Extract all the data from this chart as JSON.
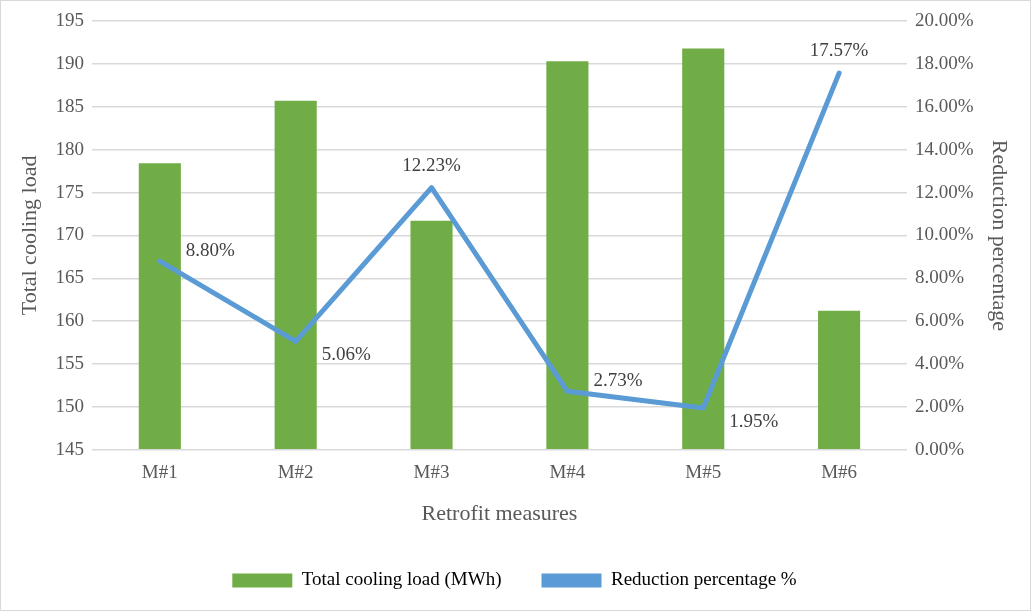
{
  "chart_data": {
    "type": "bar",
    "xlabel": "Retrofit measures",
    "ylabel": "Total cooling load",
    "y2label": "Reduction percentage",
    "categories": [
      "M#1",
      "M#2",
      "M#3",
      "M#4",
      "M#5",
      "M#6"
    ],
    "series": [
      {
        "name": "Total cooling load (MWh)",
        "color": "#70ad47",
        "values": [
          178.4,
          185.7,
          171.7,
          190.3,
          191.8,
          161.2
        ]
      },
      {
        "name": "Reduction percentage %",
        "type": "line",
        "axis": "y2",
        "color": "#5b9bd5",
        "values": [
          8.8,
          5.06,
          12.23,
          2.73,
          1.95,
          17.57
        ],
        "value_labels": [
          "8.80%",
          "5.06%",
          "12.23%",
          "2.73%",
          "1.95%",
          "17.57%"
        ]
      }
    ],
    "ylim": [
      145,
      195
    ],
    "yticks": [
      145,
      150,
      155,
      160,
      165,
      170,
      175,
      180,
      185,
      190,
      195
    ],
    "y2lim": [
      0,
      20
    ],
    "y2ticks": [
      {
        "value": 0,
        "label": "0.00%"
      },
      {
        "value": 2,
        "label": "2.00%"
      },
      {
        "value": 4,
        "label": "4.00%"
      },
      {
        "value": 6,
        "label": "6.00%"
      },
      {
        "value": 8,
        "label": "8.00%"
      },
      {
        "value": 10,
        "label": "10.00%"
      },
      {
        "value": 12,
        "label": "12.00%"
      },
      {
        "value": 14,
        "label": "14.00%"
      },
      {
        "value": 16,
        "label": "16.00%"
      },
      {
        "value": 18,
        "label": "18.00%"
      },
      {
        "value": 20,
        "label": "20.00%"
      }
    ],
    "grid": "y",
    "legend": "bottom",
    "marker": "none"
  }
}
